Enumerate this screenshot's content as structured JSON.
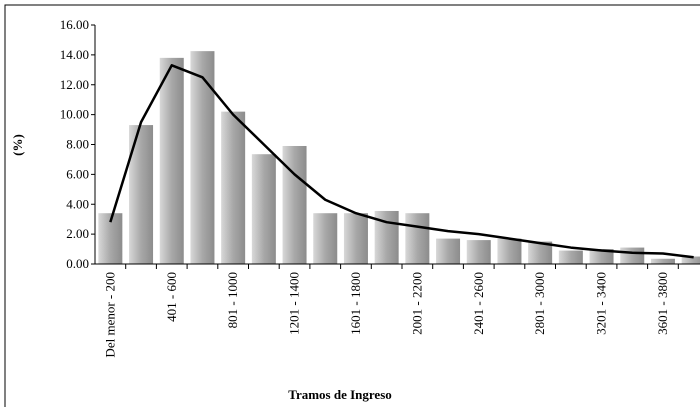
{
  "chart_data": {
    "type": "bar",
    "x_label": "Tramos de Ingreso",
    "y_label": "(%)",
    "categories": [
      "Del menor - 200",
      null,
      "401 - 600",
      null,
      "801 - 1000",
      null,
      "1201 - 1400",
      null,
      "1601 - 1800",
      null,
      "2001 - 2200",
      null,
      "2401 - 2600",
      null,
      "2801 - 3000",
      null,
      "3201 - 3400",
      null,
      "3601 - 3800",
      null
    ],
    "series": [
      {
        "type": "bar",
        "color": "#b0b0b0",
        "values": [
          3.4,
          9.3,
          13.8,
          14.25,
          10.2,
          7.35,
          7.9,
          3.4,
          3.4,
          3.55,
          3.4,
          1.7,
          1.6,
          1.7,
          1.5,
          0.9,
          1.0,
          1.1,
          0.35,
          0.5
        ]
      },
      {
        "type": "line",
        "color": "#000000",
        "values": [
          2.8,
          9.5,
          13.3,
          12.5,
          10.0,
          8.0,
          6.0,
          4.3,
          3.4,
          2.8,
          2.5,
          2.2,
          2.0,
          1.7,
          1.4,
          1.1,
          0.9,
          0.75,
          0.7,
          0.45
        ]
      }
    ],
    "ylim": [
      0,
      16
    ],
    "yticks": [
      {
        "value": 0,
        "label": "0.00"
      },
      {
        "value": 2,
        "label": "2.00"
      },
      {
        "value": 4,
        "label": "4.00"
      },
      {
        "value": 6,
        "label": "6.00"
      },
      {
        "value": 8,
        "label": "8.00"
      },
      {
        "value": 10,
        "label": "10.00"
      },
      {
        "value": 12,
        "label": "12.00"
      },
      {
        "value": 14,
        "label": "14.00"
      },
      {
        "value": 16,
        "label": "16.00"
      }
    ]
  }
}
